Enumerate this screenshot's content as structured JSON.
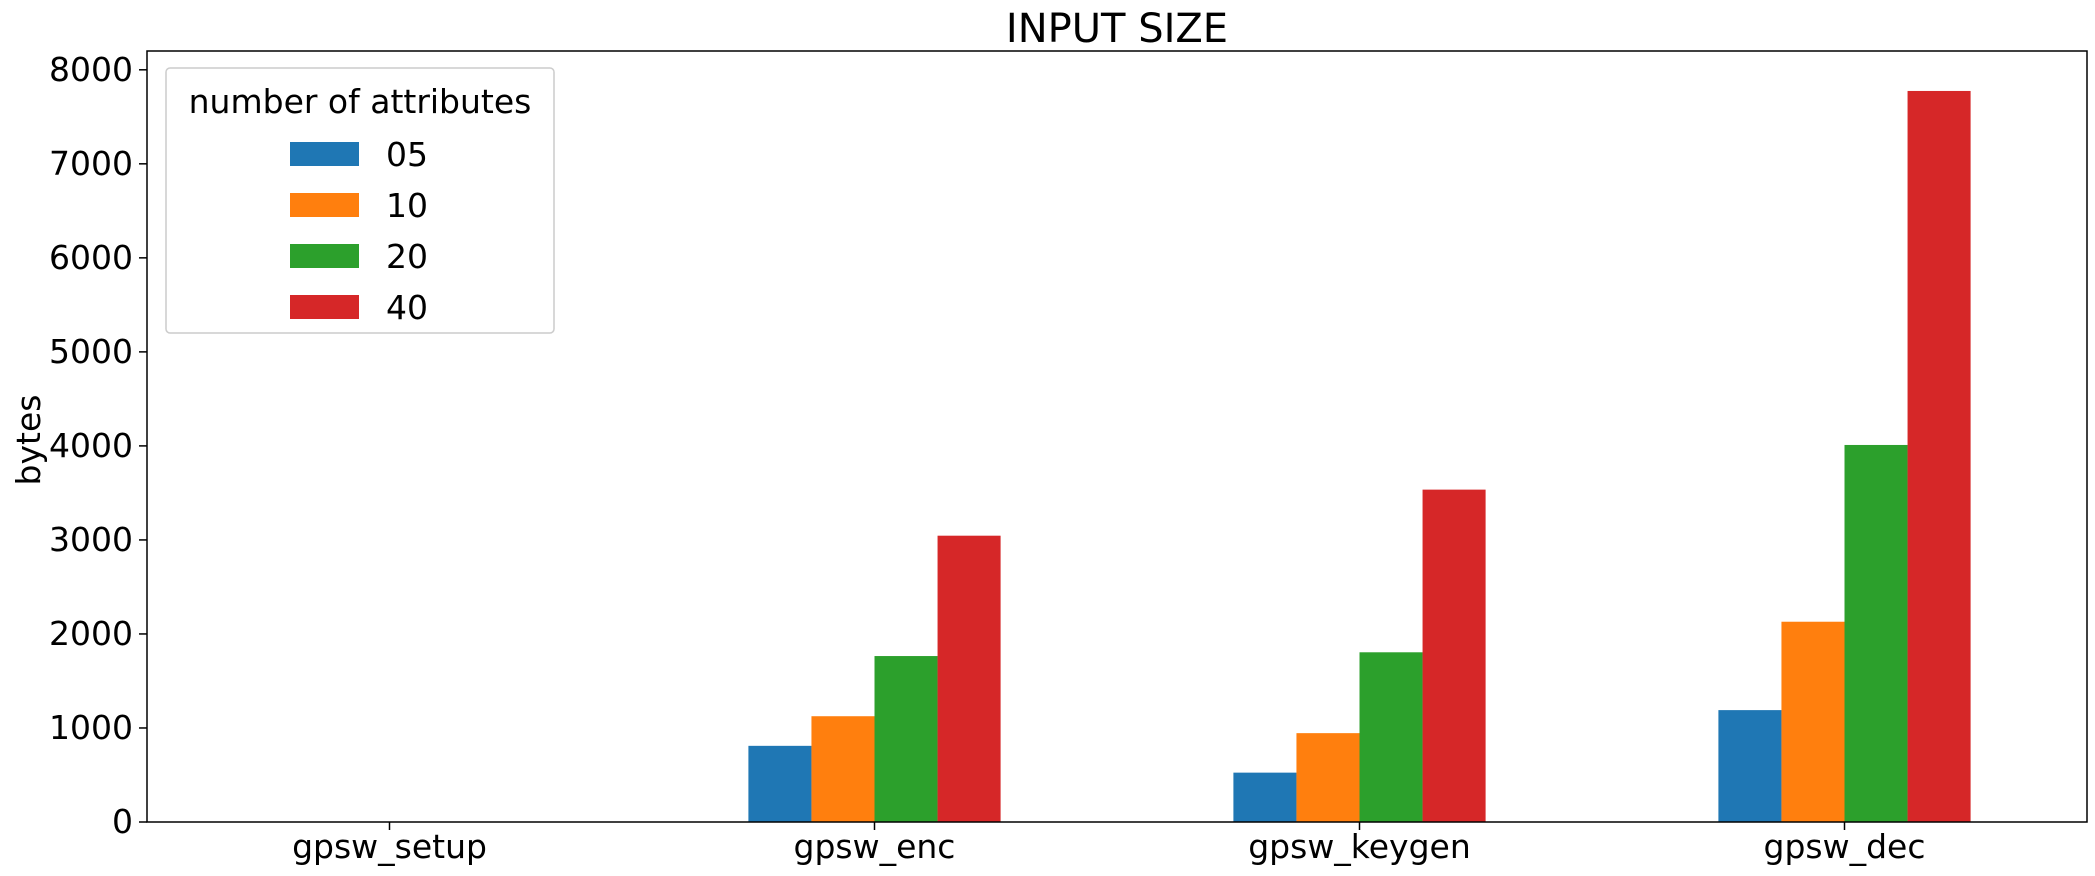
{
  "chart_data": {
    "type": "bar",
    "title": "INPUT SIZE",
    "xlabel": "",
    "ylabel": "bytes",
    "ylim": [
      0,
      8200
    ],
    "yticks": [
      0,
      1000,
      2000,
      3000,
      4000,
      5000,
      6000,
      7000,
      8000
    ],
    "categories": [
      "gpsw_setup",
      "gpsw_enc",
      "gpsw_keygen",
      "gpsw_dec"
    ],
    "series": [
      {
        "name": "05",
        "color": "#1f77b4",
        "values": [
          0,
          810,
          525,
          1190
        ]
      },
      {
        "name": "10",
        "color": "#ff7f0e",
        "values": [
          0,
          1125,
          945,
          2130
        ]
      },
      {
        "name": "20",
        "color": "#2ca02c",
        "values": [
          0,
          1765,
          1805,
          4010
        ]
      },
      {
        "name": "40",
        "color": "#d62728",
        "values": [
          0,
          3045,
          3535,
          7775
        ]
      }
    ],
    "legend": {
      "title": "number of attributes",
      "position": "top-left"
    },
    "grid": false
  }
}
